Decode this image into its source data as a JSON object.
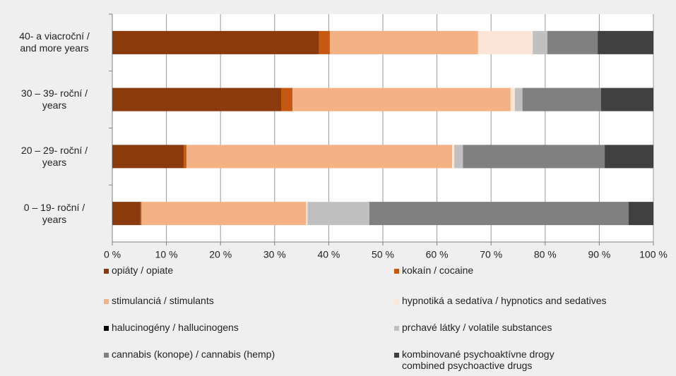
{
  "chart_data": {
    "type": "stacked_barh",
    "categories": [
      "40- a viacroční /\nand more years",
      "30 – 39- roční /\nyears",
      "20 – 29- roční /\nyears",
      "0 – 19- roční /\nyears"
    ],
    "series": [
      {
        "name": "opiáty / opiate",
        "color": "#8b3a0e",
        "values": [
          38.2,
          31.2,
          13.2,
          5.2
        ]
      },
      {
        "name": "kokaín / cocaine",
        "color": "#c65911",
        "values": [
          2.0,
          2.1,
          0.5,
          0.2
        ]
      },
      {
        "name": "stimulanciá / stimulants",
        "color": "#f4b183",
        "values": [
          27.4,
          40.3,
          49.1,
          30.4
        ]
      },
      {
        "name": "hypnotiká a sedatíva / hypnotics and sedatives",
        "color": "#fbe5d6",
        "values": [
          10.1,
          0.8,
          0.4,
          0.3
        ]
      },
      {
        "name": "halucinogény / hallucinogens",
        "color": "#000000",
        "values": [
          0,
          0,
          0,
          0
        ]
      },
      {
        "name": "prchavé látky / volatile substances",
        "color": "#c0c0c0",
        "values": [
          2.7,
          1.4,
          1.6,
          11.4
        ]
      },
      {
        "name": "cannabis (konope) / cannabis (hemp)",
        "color": "#808080",
        "values": [
          9.3,
          14.5,
          26.2,
          47.9
        ]
      },
      {
        "name": "kombinované psychoaktívne drogy\ncombined psychoactive drugs",
        "color": "#404040",
        "values": [
          10.3,
          9.7,
          9.0,
          4.6
        ]
      }
    ],
    "xlim": [
      0,
      100
    ],
    "xticks": [
      {
        "value": 0,
        "label": "0 %"
      },
      {
        "value": 10,
        "label": "10 %"
      },
      {
        "value": 20,
        "label": "20 %"
      },
      {
        "value": 30,
        "label": "30 %"
      },
      {
        "value": 40,
        "label": "40 %"
      },
      {
        "value": 50,
        "label": "50 %"
      },
      {
        "value": 60,
        "label": "60 %"
      },
      {
        "value": 70,
        "label": "70 %"
      },
      {
        "value": 80,
        "label": "80 %"
      },
      {
        "value": 90,
        "label": "90 %"
      },
      {
        "value": 100,
        "label": "100 %"
      }
    ],
    "grid": true
  }
}
